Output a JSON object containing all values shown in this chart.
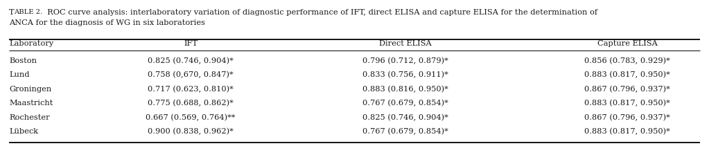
{
  "title_bold": "Table 2.",
  "title_rest_line1": "  ROC curve analysis: interlaboratory variation of diagnostic performance of IFT, direct ELISA and capture ELISA for the determination of",
  "title_line2": "ANCA for the diagnosis of WG in six laboratories",
  "col_headers": [
    "Laboratory",
    "IFT",
    "Direct ELISA",
    "Capture ELISA"
  ],
  "rows": [
    [
      "Boston",
      "0.825 (0.746, 0.904)*",
      "0.796 (0.712, 0.879)*",
      "0.856 (0.783, 0.929)*"
    ],
    [
      "Lund",
      "0.758 (0,670, 0.847)*",
      "0.833 (0.756, 0.911)*",
      "0.883 (0.817, 0.950)*"
    ],
    [
      "Groningen",
      "0.717 (0.623, 0.810)*",
      "0.883 (0.816, 0.950)*",
      "0.867 (0.796, 0.937)*"
    ],
    [
      "Maastricht",
      "0.775 (0.688, 0.862)*",
      "0.767 (0.679, 0.854)*",
      "0.883 (0.817, 0.950)*"
    ],
    [
      "Rochester",
      "0.667 (0.569, 0.764)**",
      "0.825 (0.746, 0.904)*",
      "0.867 (0.796, 0.937)*"
    ],
    [
      "Lübeck",
      "0.900 (0.838, 0.962)*",
      "0.767 (0.679, 0.854)*",
      "0.883 (0.817, 0.950)*"
    ]
  ],
  "background_color": "#ffffff",
  "text_color": "#1a1a1a",
  "font_size": 8.2,
  "title_font_size": 8.2,
  "small_caps_size": 7.2
}
